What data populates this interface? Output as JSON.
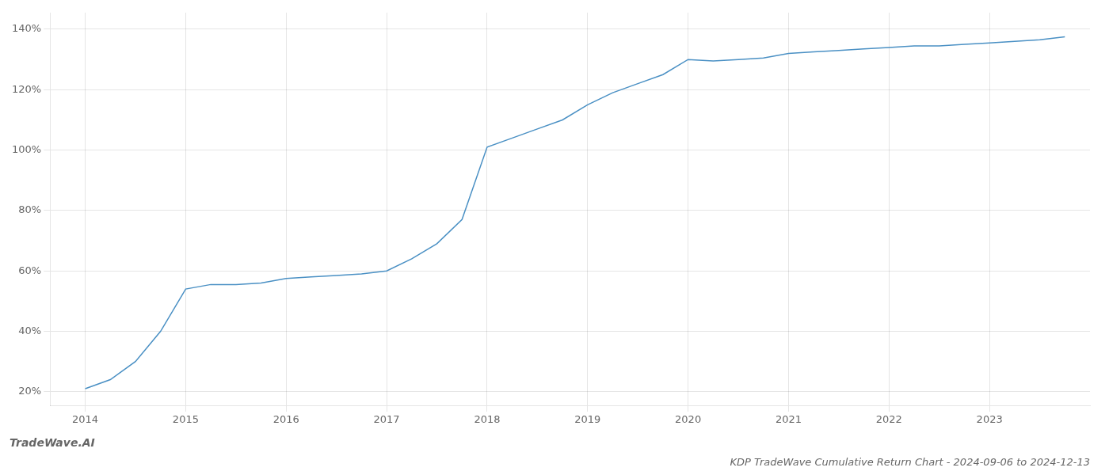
{
  "chart_data": {
    "type": "line",
    "title": "KDP TradeWave Cumulative Return Chart - 2024-09-06 to 2024-12-13",
    "annotations": [
      "TradeWave.AI"
    ],
    "x": [
      2014.0,
      2014.25,
      2014.5,
      2014.75,
      2015.0,
      2015.25,
      2015.5,
      2015.75,
      2016.0,
      2016.25,
      2016.5,
      2016.75,
      2017.0,
      2017.25,
      2017.5,
      2017.75,
      2018.0,
      2018.25,
      2018.5,
      2018.75,
      2019.0,
      2019.25,
      2019.5,
      2019.75,
      2020.0,
      2020.25,
      2020.5,
      2020.75,
      2021.0,
      2021.25,
      2021.5,
      2021.75,
      2022.0,
      2022.25,
      2022.5,
      2022.75,
      2023.0,
      2023.25,
      2023.5,
      2023.75
    ],
    "values": [
      0.21,
      0.24,
      0.3,
      0.4,
      0.54,
      0.555,
      0.555,
      0.56,
      0.575,
      0.58,
      0.585,
      0.59,
      0.6,
      0.64,
      0.69,
      0.77,
      1.01,
      1.04,
      1.07,
      1.1,
      1.15,
      1.19,
      1.22,
      1.25,
      1.3,
      1.295,
      1.3,
      1.305,
      1.32,
      1.325,
      1.33,
      1.335,
      1.34,
      1.345,
      1.345,
      1.35,
      1.355,
      1.36,
      1.365,
      1.375
    ],
    "color": "#4a90c4",
    "xlim": [
      2013.65,
      2024.0
    ],
    "xticks": [
      2014,
      2015,
      2016,
      2017,
      2018,
      2019,
      2020,
      2021,
      2022,
      2023
    ],
    "ylim": [
      0.155,
      1.455
    ],
    "yticks": [
      {
        "value": 0.2,
        "label": "20%"
      },
      {
        "value": 0.4,
        "label": "40%"
      },
      {
        "value": 0.6,
        "label": "60%"
      },
      {
        "value": 0.8,
        "label": "80%"
      },
      {
        "value": 1.0,
        "label": "100%"
      },
      {
        "value": 1.2,
        "label": "120%"
      },
      {
        "value": 1.4,
        "label": "140%"
      }
    ],
    "grid": true
  }
}
